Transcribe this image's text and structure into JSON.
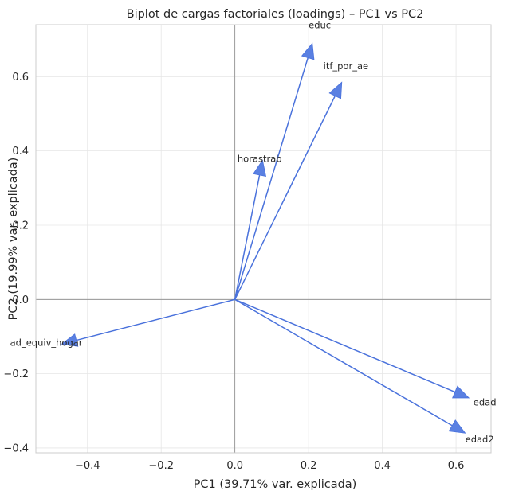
{
  "chart_data": {
    "type": "scatter",
    "title": "Biplot de cargas factoriales (loadings) – PC1 vs PC2",
    "xlabel": "PC1 (39.71% var. explicada)",
    "ylabel": "PC2 (19.99% var. explicada)",
    "xlim": [
      -0.54,
      0.695
    ],
    "ylim": [
      -0.413,
      0.74
    ],
    "xticks": [
      -0.4,
      -0.2,
      0.0,
      0.2,
      0.4,
      0.6
    ],
    "xtick_labels": [
      "−0.4",
      "−0.2",
      "0.0",
      "0.2",
      "0.4",
      "0.6"
    ],
    "yticks": [
      -0.4,
      -0.2,
      0.0,
      0.2,
      0.4,
      0.6
    ],
    "ytick_labels": [
      "−0.4",
      "−0.2",
      "0.0",
      "0.2",
      "0.4",
      "0.6"
    ],
    "grid": true,
    "arrow_color": "#4a72dc",
    "arrow_head_color": "#5a80e2",
    "vectors": [
      {
        "name": "educ",
        "x": 0.21,
        "y": 0.69,
        "label_x": 0.23,
        "label_y": 0.73
      },
      {
        "name": "itf_por_ae",
        "x": 0.29,
        "y": 0.585,
        "label_x": 0.32,
        "label_y": 0.62
      },
      {
        "name": "horastrab",
        "x": 0.075,
        "y": 0.375,
        "label_x": 0.075,
        "label_y": 0.37
      },
      {
        "name": "ad_equiv_hogar",
        "x": -0.47,
        "y": -0.12,
        "label_x": -0.46,
        "label_y": -0.125
      },
      {
        "name": "edad",
        "x": 0.635,
        "y": -0.265,
        "label_x": 0.66,
        "label_y": -0.285
      },
      {
        "name": "edad2",
        "x": 0.625,
        "y": -0.36,
        "label_x": 0.64,
        "label_y": -0.385
      }
    ]
  }
}
